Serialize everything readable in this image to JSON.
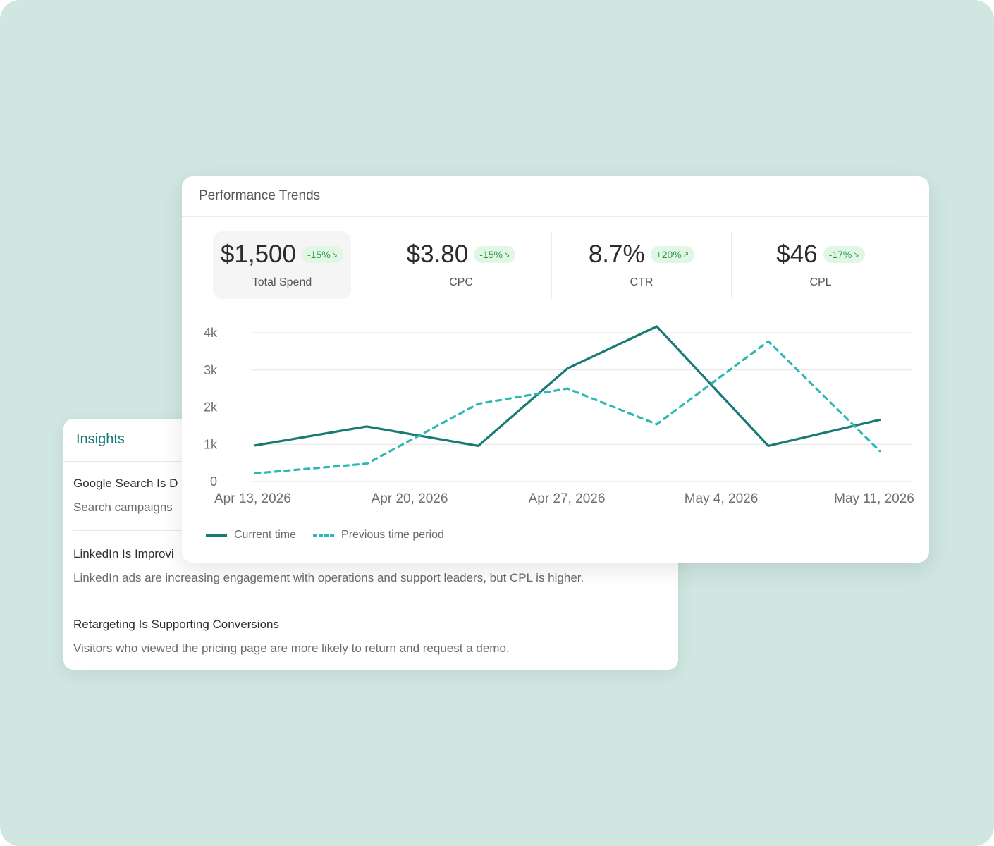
{
  "colors": {
    "background": "#cfe6e1",
    "accent": "#177a74",
    "secondary": "#2db8b4",
    "badge_bg": "#e2f6e5",
    "badge_text": "#2d9c47"
  },
  "insights": {
    "title": "Insights",
    "items": [
      {
        "title": "Google Search Is D",
        "desc": "Search campaigns"
      },
      {
        "title": "LinkedIn Is Improvi",
        "desc": "LinkedIn ads are increasing engagement with operations and support leaders, but CPL is higher."
      },
      {
        "title": "Retargeting Is Supporting Conversions",
        "desc": "Visitors who viewed the pricing page are more likely to return and request a demo."
      }
    ]
  },
  "performance": {
    "title": "Performance Trends",
    "kpis": [
      {
        "value": "$1,500",
        "change": "-15%",
        "trend": "down",
        "label": "Total Spend",
        "selected": true
      },
      {
        "value": "$3.80",
        "change": "-15%",
        "trend": "down",
        "label": "CPC",
        "selected": false
      },
      {
        "value": "8.7%",
        "change": "+20%",
        "trend": "up",
        "label": "CTR",
        "selected": false
      },
      {
        "value": "$46",
        "change": "-17%",
        "trend": "down",
        "label": "CPL",
        "selected": false
      }
    ],
    "legend": {
      "current": "Current time",
      "previous": "Previous time period"
    }
  },
  "chart_data": {
    "type": "line",
    "x_ticks": [
      "Apr 13, 2026",
      "Apr 20, 2026",
      "Apr 27, 2026",
      "May 4, 2026",
      "May 11, 2026"
    ],
    "y_ticks": [
      "0",
      "1k",
      "2k",
      "3k",
      "4k"
    ],
    "ylim": [
      0,
      4000
    ],
    "grid": true,
    "legend_position": "bottom-left",
    "series": [
      {
        "name": "Current time",
        "style": "solid",
        "color": "#177a74",
        "x": [
          "Apr 13, 2026",
          "Apr 18, 2026",
          "Apr 23, 2026",
          "Apr 27, 2026",
          "May 1, 2026",
          "May 6, 2026",
          "May 11, 2026"
        ],
        "values": [
          970,
          1480,
          960,
          3040,
          4170,
          960,
          1660
        ]
      },
      {
        "name": "Previous time period",
        "style": "dashed",
        "color": "#2db8b4",
        "x": [
          "Apr 13, 2026",
          "Apr 18, 2026",
          "Apr 23, 2026",
          "Apr 27, 2026",
          "May 1, 2026",
          "May 6, 2026",
          "May 11, 2026"
        ],
        "values": [
          220,
          480,
          2090,
          2500,
          1540,
          3770,
          820
        ]
      }
    ]
  }
}
